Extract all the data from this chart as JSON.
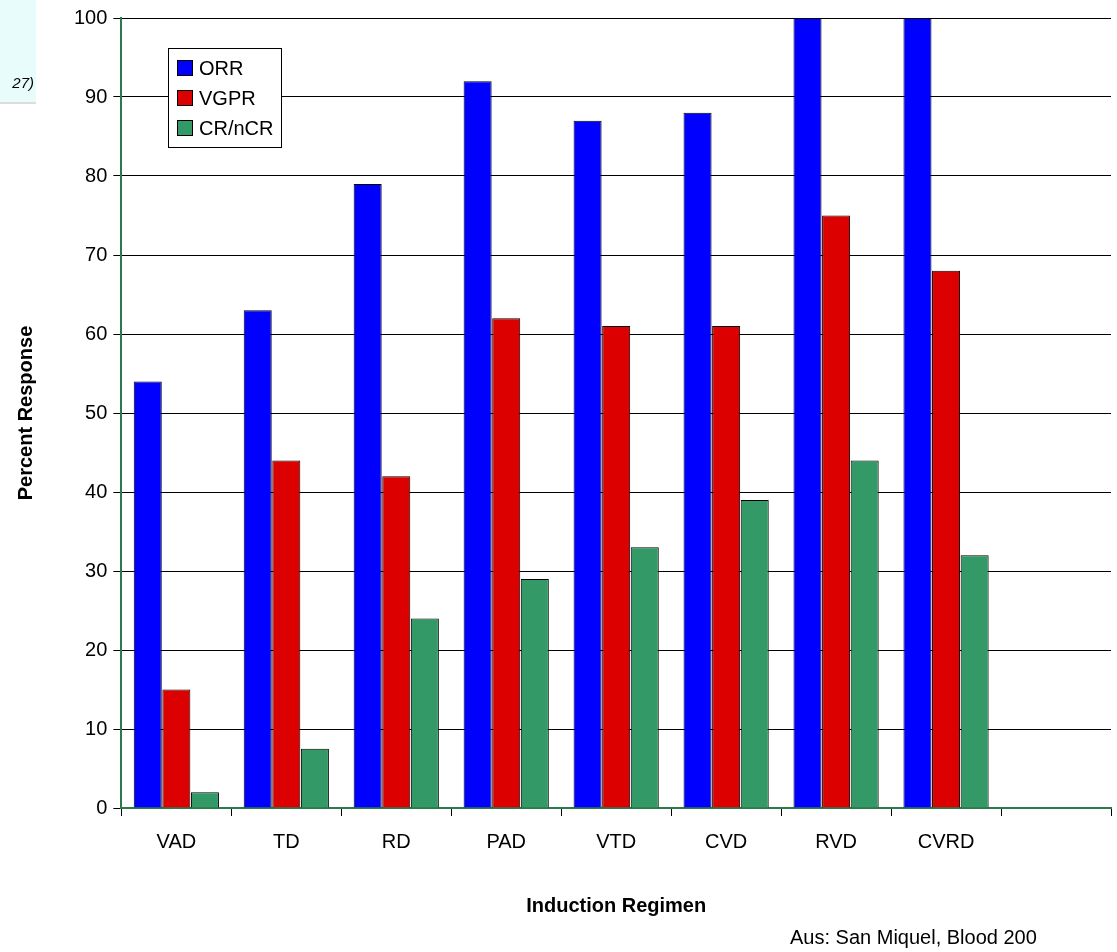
{
  "chart_data": {
    "type": "bar",
    "xlabel": "Induction Regimen",
    "ylabel": "Percent Response",
    "categories": [
      "VAD",
      "TD",
      "RD",
      "PAD",
      "VTD",
      "CVD",
      "RVD",
      "CVRD",
      null
    ],
    "series": [
      {
        "name": "ORR",
        "color": "#0000ff",
        "values": [
          54,
          63,
          79,
          92,
          87,
          88,
          100,
          100,
          null
        ]
      },
      {
        "name": "VGPR",
        "color": "#dd0000",
        "values": [
          15,
          44,
          42,
          62,
          61,
          61,
          75,
          68,
          null
        ]
      },
      {
        "name": "CR/nCR",
        "color": "#339966",
        "values": [
          2,
          7.5,
          24,
          29,
          33,
          39,
          44,
          32,
          null
        ]
      }
    ],
    "ylim": [
      0,
      100
    ],
    "yticks": [
      0,
      10,
      20,
      30,
      40,
      50,
      60,
      70,
      80,
      90,
      100
    ],
    "grid": "y",
    "legend": "top left",
    "annotations": [
      "27)",
      "Aus: San Miquel, Blood 200"
    ]
  }
}
